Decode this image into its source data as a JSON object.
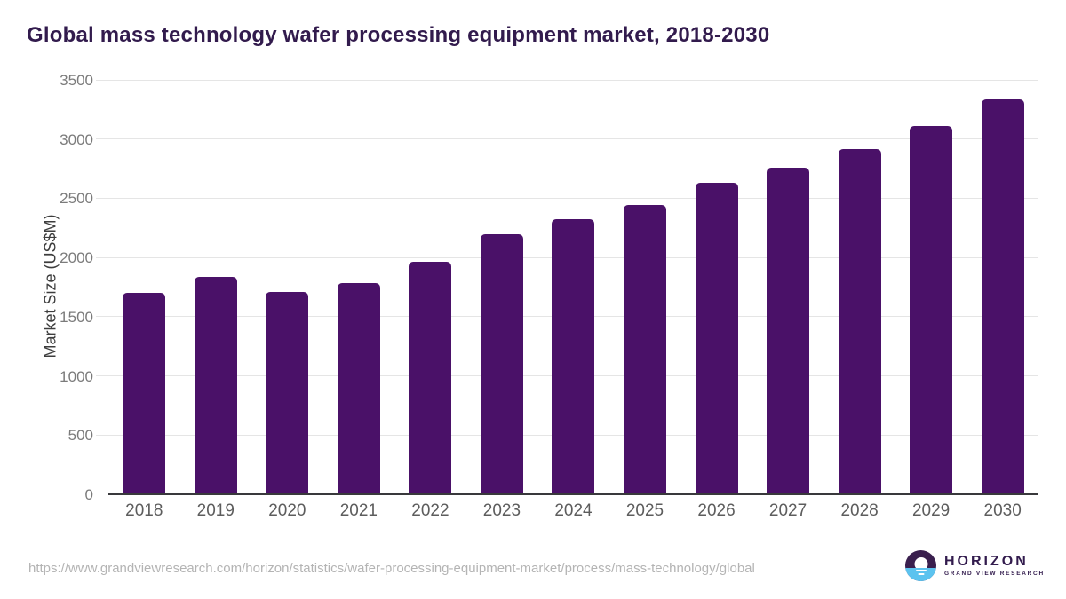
{
  "page": {
    "title": "Global mass technology wafer processing equipment market, 2018-2030"
  },
  "chart_data": {
    "type": "bar",
    "title": "Global mass technology wafer processing equipment market, 2018-2030",
    "categories": [
      "2018",
      "2019",
      "2020",
      "2021",
      "2022",
      "2023",
      "2024",
      "2025",
      "2026",
      "2027",
      "2028",
      "2029",
      "2030"
    ],
    "values": [
      1700,
      1840,
      1710,
      1785,
      1960,
      2195,
      2320,
      2445,
      2630,
      2760,
      2915,
      3110,
      3335
    ],
    "xlabel": "",
    "ylabel": "Market Size (US$M)",
    "ylim": [
      0,
      3500
    ],
    "yticks": [
      0,
      500,
      1000,
      1500,
      2000,
      2500,
      3000,
      3500
    ],
    "grid": "horizontal",
    "legend": false,
    "bar_color": "#4a1168"
  },
  "footer": {
    "source_url": "https://www.grandviewresearch.com/horizon/statistics/wafer-processing-equipment-market/process/mass-technology/global",
    "logo": {
      "brand": "HORIZON",
      "sub_brand": "GRAND VIEW RESEARCH"
    }
  },
  "colors": {
    "bar": "#4a1168",
    "title": "#321b4d",
    "axis_label": "#7b7b7b",
    "x_label": "#5d5d5d",
    "gridline": "#e5e5e5",
    "baseline": "#39393c",
    "url_text": "#b4b4b4",
    "logo_purple": "#3a1f4e",
    "logo_blue": "#5cc3ef"
  }
}
